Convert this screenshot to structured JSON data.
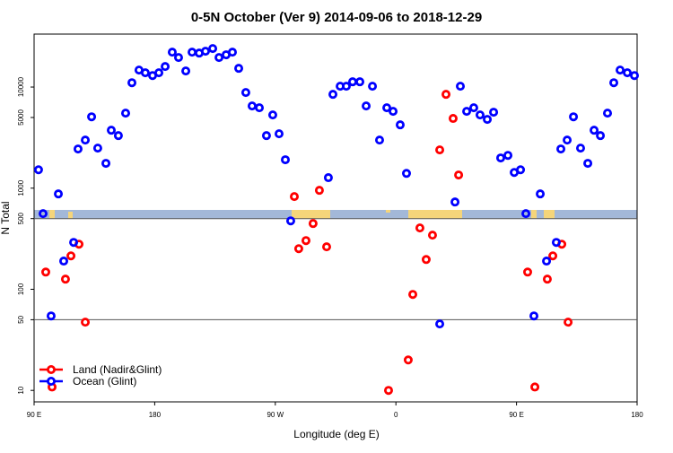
{
  "chart_data": {
    "type": "scatter",
    "title": "0-5N October (Ver 9)   2014-09-06 to 2018-12-29",
    "x_label": "Longitude (deg E)",
    "y_label": "N Total",
    "log_y": true,
    "xlim": [
      90,
      540
    ],
    "ylim": [
      7.7,
      33400
    ],
    "xticks": [
      {
        "value": 90,
        "label": "90 E"
      },
      180,
      {
        "value": 270,
        "label": "90 W"
      },
      {
        "value": 360,
        "label": "0"
      },
      {
        "value": 450,
        "label": "90 E"
      },
      {
        "value": 540,
        "label": "180"
      }
    ],
    "yticks": [
      10,
      50,
      100,
      500,
      1000,
      5000,
      10000
    ],
    "hlines": [
      500,
      50
    ],
    "legend": "bottom-left",
    "series": [
      {
        "name": "Land (Nadir&Glint)",
        "color": "#ff0000",
        "x": [
          98.7,
          103.4,
          113.4,
          117.5,
          123.5,
          128.2,
          284.2,
          287.5,
          292.9,
          298.2,
          302.9,
          308.3,
          354.5,
          369.2,
          372.6,
          377.9,
          382.6,
          387.3,
          392.7,
          397.4,
          402.7,
          406.8,
          458.3,
          463.7,
          473.0,
          477.1,
          483.8,
          488.5
        ],
        "values": [
          148,
          10.8,
          126,
          214,
          279,
          47.3,
          826,
          252,
          303,
          447,
          952,
          263,
          10,
          20,
          89,
          404,
          197,
          343,
          2390,
          8470,
          4890,
          1350,
          148,
          10.8,
          126,
          214,
          279,
          47.3
        ]
      },
      {
        "name": "Ocean (Glint)",
        "color": "#0000ff",
        "x": [
          93.3,
          96.7,
          102.7,
          108.1,
          112.1,
          119.5,
          122.8,
          128.2,
          132.9,
          137.5,
          143.6,
          147.6,
          152.9,
          158.3,
          163.0,
          168.3,
          173.0,
          178.4,
          183.1,
          187.8,
          193.1,
          197.8,
          203.2,
          207.9,
          213.2,
          217.9,
          223.3,
          228.0,
          233.3,
          238.0,
          242.7,
          248.0,
          252.7,
          258.1,
          263.4,
          268.1,
          272.8,
          277.5,
          281.5,
          309.6,
          313.0,
          318.4,
          323.0,
          327.7,
          333.1,
          337.8,
          342.5,
          347.8,
          353.2,
          357.9,
          363.2,
          367.9,
          392.7,
          404.1,
          408.1,
          412.8,
          418.1,
          422.8,
          428.2,
          432.9,
          438.2,
          443.6,
          448.3,
          453.0,
          457.0,
          463.0,
          467.7,
          472.4,
          479.7,
          483.1,
          487.8,
          492.5,
          497.8,
          503.2,
          507.9,
          512.6,
          517.9,
          522.6,
          527.3,
          532.7,
          538.0
        ],
        "values": [
          1520,
          560,
          54.5,
          877,
          190,
          291,
          2440,
          2990,
          5080,
          2490,
          1760,
          3740,
          3310,
          5520,
          11040,
          14720,
          13840,
          13000,
          13840,
          15960,
          22130,
          19590,
          14420,
          22130,
          21680,
          22600,
          24040,
          19590,
          20840,
          22130,
          15310,
          8830,
          6500,
          6240,
          3310,
          5300,
          3450,
          1910,
          475,
          1270,
          8470,
          10190,
          10190,
          11270,
          11270,
          6500,
          10190,
          2990,
          6240,
          5750,
          4230,
          1400,
          45.4,
          730,
          10190,
          5750,
          6240,
          5300,
          4790,
          5640,
          1990,
          2110,
          1430,
          1520,
          560,
          54.5,
          877,
          190,
          291,
          2440,
          2990,
          5080,
          2490,
          1760,
          3740,
          3310,
          5520,
          11040,
          14720,
          13840,
          13000
        ]
      }
    ]
  }
}
